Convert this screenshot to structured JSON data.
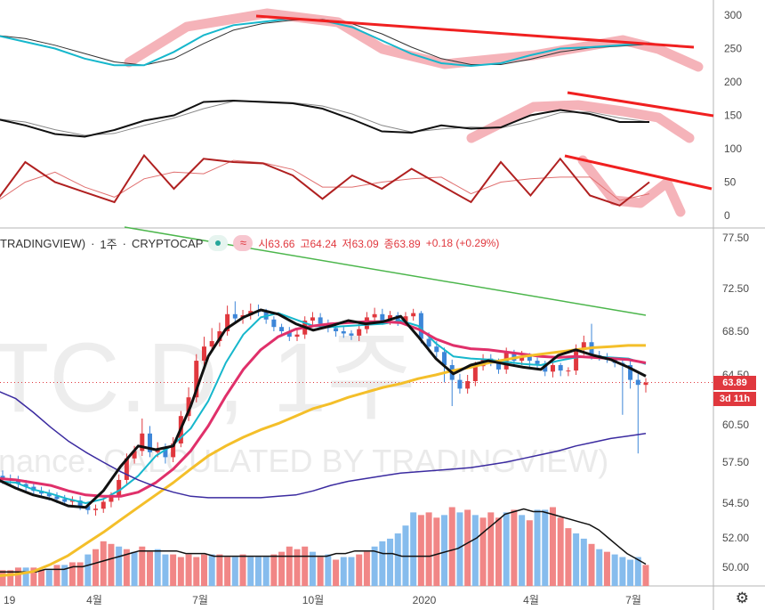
{
  "header": {
    "symbol": "TRADINGVIEW)",
    "interval": "1주",
    "source": "CRYPTOCAP",
    "open": "시63.66",
    "high": "고64.24",
    "low": "저63.09",
    "close": "종63.89",
    "change": "+0.18 (+0.29%)",
    "approx_badge": "≈"
  },
  "watermark": {
    "big": "TC.D, 1주",
    "small": "inance. CALCULATED BY TRADINGVIEW)"
  },
  "price_tag": {
    "price": "63.89",
    "countdown": "3d 11h"
  },
  "colors": {
    "up": "#e0383e",
    "down": "#3d86d8",
    "ma_fast": "#111111",
    "ma_cyan": "#16b7cc",
    "ma_pink": "#e0306a",
    "ma_yellow": "#f4bf2a",
    "ma_purple": "#3b2ba0",
    "trend_green": "#4cb64c",
    "drawing_red": "#f02020",
    "highlight": "#f2a0a8",
    "vol_up": "#f08080",
    "vol_down": "#7fb8ec"
  },
  "chart_data": [
    {
      "type": "line",
      "title": "",
      "ylim": [
        -20,
        320
      ],
      "y_ticks": [
        "300",
        "250",
        "200",
        "150",
        "100",
        "50",
        "0"
      ],
      "series": [
        {
          "values": [
            270,
            260,
            250,
            235,
            225,
            225,
            245,
            270,
            285,
            290,
            295,
            292,
            282,
            262,
            242,
            228,
            224,
            228,
            240,
            250,
            252,
            255,
            258
          ]
        },
        {
          "values": [
            145,
            135,
            122,
            118,
            128,
            142,
            150,
            170,
            172,
            170,
            168,
            160,
            144,
            126,
            124,
            135,
            130,
            132,
            150,
            158,
            152,
            140,
            140
          ]
        },
        {
          "values": [
            20,
            80,
            50,
            35,
            20,
            90,
            40,
            85,
            80,
            78,
            60,
            25,
            60,
            40,
            70,
            45,
            20,
            80,
            30,
            85,
            30,
            15,
            50
          ]
        }
      ]
    },
    {
      "type": "line",
      "title": "",
      "ylim": [
        48.5,
        77.5
      ],
      "y_ticks": [
        "77.50",
        "72.50",
        "68.50",
        "64.50",
        "60.50",
        "57.50",
        "54.50",
        "52.00",
        "50.00"
      ],
      "x_ticks": [
        "19",
        "4월",
        "7월",
        "10월",
        "2020",
        "4월",
        "7월"
      ],
      "ohlc": {
        "open": [
          56.5,
          56.3,
          56.2,
          55.9,
          55.7,
          55.4,
          55.2,
          55.0,
          54.8,
          54.6,
          54.7,
          54.3,
          54.0,
          54.1,
          54.6,
          55.0,
          56.2,
          57.8,
          58.4,
          59.8,
          58.3,
          58.6,
          57.9,
          59.0,
          61.2,
          62.7,
          65.8,
          67.1,
          67.6,
          68.5,
          70.1,
          69.7,
          70.0,
          70.4,
          70.3,
          69.6,
          68.9,
          68.5,
          68.0,
          68.2,
          69.5,
          69.8,
          69.2,
          68.8,
          68.5,
          68.3,
          68.1,
          68.7,
          69.8,
          70.1,
          69.5,
          70.0,
          69.4,
          69.9,
          70.2,
          67.8,
          67.1,
          66.6,
          65.4,
          64.1,
          63.4,
          64.0,
          65.3,
          66.0,
          65.7,
          65.0,
          66.5,
          65.8,
          66.2,
          65.8,
          65.5,
          64.8,
          65.4,
          64.9,
          64.9,
          66.8,
          67.5,
          66.3,
          66.1,
          65.9,
          65.6,
          65.4,
          64.1,
          63.7
        ],
        "close": [
          56.3,
          56.2,
          55.9,
          55.7,
          55.4,
          55.2,
          55.0,
          54.8,
          54.6,
          54.7,
          54.3,
          54.0,
          54.1,
          54.6,
          55.0,
          56.2,
          57.8,
          58.4,
          59.8,
          58.3,
          58.6,
          57.9,
          59.0,
          61.2,
          62.7,
          65.8,
          67.1,
          67.6,
          68.5,
          70.1,
          69.7,
          70.0,
          70.4,
          70.3,
          69.6,
          68.9,
          68.5,
          68.0,
          68.2,
          69.5,
          69.8,
          69.2,
          68.8,
          68.5,
          68.3,
          68.1,
          68.7,
          69.8,
          70.1,
          69.5,
          70.0,
          69.4,
          69.9,
          70.2,
          67.8,
          67.1,
          66.6,
          65.4,
          64.1,
          63.4,
          64.0,
          65.3,
          66.0,
          65.7,
          65.0,
          66.5,
          65.8,
          66.2,
          65.8,
          65.5,
          64.8,
          65.4,
          64.9,
          64.9,
          66.8,
          67.5,
          66.3,
          66.1,
          65.9,
          65.6,
          65.4,
          64.1,
          63.7,
          63.89
        ],
        "high": [
          56.9,
          56.6,
          56.5,
          56.2,
          56.0,
          55.7,
          55.5,
          55.3,
          55.1,
          55.0,
          55.0,
          54.6,
          54.4,
          54.9,
          55.3,
          56.6,
          58.2,
          58.8,
          61.0,
          60.4,
          59.1,
          59.0,
          59.5,
          61.6,
          63.5,
          66.4,
          68.0,
          68.8,
          69.3,
          70.9,
          71.3,
          70.5,
          71.1,
          71.0,
          70.6,
          69.9,
          69.2,
          68.9,
          68.7,
          69.9,
          70.3,
          70.2,
          69.6,
          69.2,
          68.9,
          68.6,
          69.2,
          70.3,
          70.7,
          70.6,
          70.4,
          70.3,
          70.3,
          70.6,
          70.4,
          68.4,
          67.6,
          67.0,
          65.9,
          64.6,
          64.5,
          65.7,
          66.4,
          66.4,
          66.0,
          67.0,
          66.8,
          66.7,
          66.5,
          66.1,
          65.8,
          65.9,
          65.6,
          65.2,
          67.3,
          68.1,
          69.2,
          66.7,
          66.5,
          66.1,
          65.9,
          65.8,
          64.6,
          64.24
        ],
        "low": [
          55.9,
          55.8,
          55.6,
          55.4,
          55.1,
          54.9,
          54.7,
          54.5,
          54.3,
          54.3,
          54.0,
          53.7,
          53.6,
          53.8,
          54.2,
          54.7,
          55.8,
          57.4,
          58.0,
          57.9,
          57.9,
          57.4,
          57.5,
          58.7,
          60.8,
          62.3,
          65.3,
          66.6,
          67.1,
          68.1,
          69.2,
          69.2,
          69.6,
          69.9,
          69.2,
          68.5,
          68.0,
          67.6,
          67.6,
          67.8,
          69.1,
          68.8,
          68.4,
          68.0,
          67.9,
          67.7,
          67.6,
          68.3,
          69.4,
          69.1,
          69.1,
          69.0,
          69.0,
          69.5,
          67.4,
          66.6,
          66.1,
          63.9,
          62.0,
          63.0,
          63.0,
          63.6,
          64.9,
          65.3,
          64.6,
          64.6,
          65.4,
          65.4,
          65.2,
          65.0,
          64.4,
          64.3,
          64.4,
          64.4,
          64.5,
          66.3,
          65.9,
          65.8,
          65.6,
          65.2,
          61.3,
          63.4,
          58.2,
          63.09
        ]
      },
      "series": [
        {
          "values": [
            56.2,
            55.6,
            55.1,
            54.8,
            54.3,
            54.2,
            55.4,
            57.2,
            58.8,
            58.5,
            58.8,
            62.0,
            66.2,
            68.7,
            69.8,
            70.5,
            70.1,
            69.2,
            68.6,
            69.0,
            69.5,
            69.2,
            69.4,
            69.9,
            68.0,
            66.0,
            64.6,
            65.4,
            65.8,
            65.5,
            65.2,
            65.0,
            66.3,
            66.8,
            66.3,
            65.9,
            65.2,
            64.4
          ]
        },
        {
          "values": [
            56.1,
            56.0,
            55.5,
            55.2,
            54.8,
            54.5,
            54.8,
            55.5,
            56.5,
            58.0,
            58.9,
            60.2,
            62.4,
            65.6,
            68.2,
            69.8,
            70.2,
            69.6,
            69.0,
            68.9,
            69.0,
            69.1,
            69.2,
            69.5,
            69.0,
            67.4,
            66.2,
            66.0,
            65.9,
            65.7,
            65.5,
            65.4,
            65.8,
            66.1,
            66.2,
            66.1,
            66.0,
            65.5
          ]
        },
        {
          "values": [
            56.3,
            56.2,
            56.0,
            55.8,
            55.4,
            55.1,
            55.0,
            55.0,
            55.3,
            56.0,
            57.0,
            58.4,
            60.4,
            62.8,
            65.0,
            66.8,
            68.0,
            68.7,
            69.0,
            69.2,
            69.3,
            69.4,
            69.4,
            69.3,
            68.7,
            67.8,
            67.2,
            66.9,
            66.8,
            66.6,
            66.4,
            66.2,
            66.1,
            66.2,
            66.1,
            66.0,
            65.9,
            65.6
          ]
        },
        {
          "values": [
            49.4,
            49.5,
            49.7,
            50.2,
            50.8,
            51.6,
            52.4,
            53.3,
            54.2,
            55.1,
            56.0,
            57.0,
            58.0,
            58.8,
            59.5,
            60.1,
            60.6,
            61.2,
            61.8,
            62.2,
            62.7,
            63.1,
            63.5,
            63.8,
            64.2,
            64.5,
            64.9,
            65.2,
            65.6,
            65.9,
            66.2,
            66.4,
            66.6,
            66.8,
            67.0,
            67.1,
            67.2,
            67.2
          ]
        },
        {
          "values": [
            63.2,
            62.6,
            61.5,
            60.3,
            59.2,
            58.3,
            57.5,
            56.8,
            56.2,
            55.7,
            55.3,
            55.0,
            54.9,
            54.9,
            54.9,
            54.9,
            55.0,
            55.1,
            55.4,
            55.8,
            56.1,
            56.3,
            56.5,
            56.7,
            56.8,
            56.9,
            57.0,
            57.1,
            57.3,
            57.5,
            57.8,
            58.1,
            58.4,
            58.8,
            59.1,
            59.4,
            59.6,
            59.8
          ]
        }
      ]
    },
    {
      "type": "bar",
      "title": "",
      "values": [
        6,
        6,
        7,
        7,
        7,
        6,
        6,
        8,
        8,
        9,
        9,
        12,
        14,
        17,
        16,
        15,
        14,
        13,
        15,
        13,
        14,
        12,
        12,
        11,
        12,
        11,
        12,
        12,
        12,
        11,
        11,
        12,
        11,
        11,
        11,
        12,
        13,
        15,
        14,
        15,
        13,
        11,
        12,
        10,
        11,
        11,
        12,
        13,
        15,
        17,
        18,
        20,
        23,
        28,
        27,
        28,
        26,
        27,
        30,
        28,
        29,
        27,
        26,
        28,
        26,
        28,
        29,
        27,
        25,
        29,
        29,
        30,
        26,
        22,
        20,
        18,
        16,
        14,
        13,
        12,
        11,
        10,
        11,
        8
      ],
      "up": [
        true,
        true,
        true,
        false,
        true,
        true,
        false,
        true,
        false,
        true,
        true,
        false,
        true,
        true,
        true,
        false,
        true,
        false,
        true,
        true,
        false,
        false,
        true,
        true,
        true,
        true,
        true,
        false,
        true,
        true,
        false,
        true,
        false,
        false,
        false,
        true,
        true,
        true,
        true,
        true,
        false,
        true,
        false,
        true,
        false,
        false,
        true,
        true,
        false,
        false,
        false,
        false,
        false,
        false,
        true,
        true,
        true,
        false,
        true,
        false,
        true,
        false,
        true,
        true,
        true,
        false,
        true,
        false,
        true,
        false,
        false,
        true,
        true,
        true,
        false,
        false,
        true,
        false,
        true,
        false,
        false,
        false,
        false,
        true
      ],
      "ma": [
        6,
        6,
        6,
        6,
        6,
        7,
        7,
        7,
        8,
        8,
        9,
        10,
        11,
        12,
        13,
        14,
        14,
        14,
        14,
        14,
        13,
        13,
        13,
        12,
        12,
        12,
        12,
        12,
        12,
        12,
        12,
        12,
        12,
        12,
        12,
        12,
        13,
        13,
        14,
        14,
        14,
        13,
        13,
        12,
        12,
        12,
        12,
        13,
        14,
        15,
        17,
        19,
        22,
        25,
        28,
        29,
        30,
        29,
        29,
        28,
        27,
        26,
        25,
        24,
        22,
        19,
        16,
        13,
        11,
        9
      ]
    }
  ]
}
